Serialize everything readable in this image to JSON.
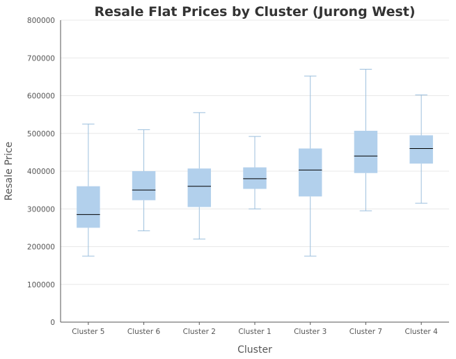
{
  "chart_data": {
    "type": "box",
    "title": "Resale Flat Prices by Cluster (Jurong West)",
    "xlabel": "Cluster",
    "ylabel": "Resale Price",
    "ylim": [
      0,
      800000
    ],
    "yticks": [
      "0",
      "100000",
      "200000",
      "300000",
      "400000",
      "500000",
      "600000",
      "700000",
      "800000"
    ],
    "ytick_values": [
      0,
      100000,
      200000,
      300000,
      400000,
      500000,
      600000,
      700000,
      800000
    ],
    "grid": true,
    "colors": {
      "box": "#b2d0ec",
      "whisker": "#9cbfdd",
      "median": "#000000"
    },
    "categories": [
      "Cluster 5",
      "Cluster 6",
      "Cluster 2",
      "Cluster 1",
      "Cluster 3",
      "Cluster 7",
      "Cluster 4"
    ],
    "boxes": [
      {
        "min": 175000,
        "q1": 250000,
        "median": 285000,
        "q3": 360000,
        "max": 525000
      },
      {
        "min": 242000,
        "q1": 323000,
        "median": 350000,
        "q3": 400000,
        "max": 510000
      },
      {
        "min": 220000,
        "q1": 305000,
        "median": 360000,
        "q3": 407000,
        "max": 555000
      },
      {
        "min": 300000,
        "q1": 353000,
        "median": 380000,
        "q3": 410000,
        "max": 492000
      },
      {
        "min": 175000,
        "q1": 333000,
        "median": 403000,
        "q3": 460000,
        "max": 652000
      },
      {
        "min": 295000,
        "q1": 395000,
        "median": 440000,
        "q3": 507000,
        "max": 670000
      },
      {
        "min": 315000,
        "q1": 420000,
        "median": 460000,
        "q3": 495000,
        "max": 602000
      }
    ]
  }
}
